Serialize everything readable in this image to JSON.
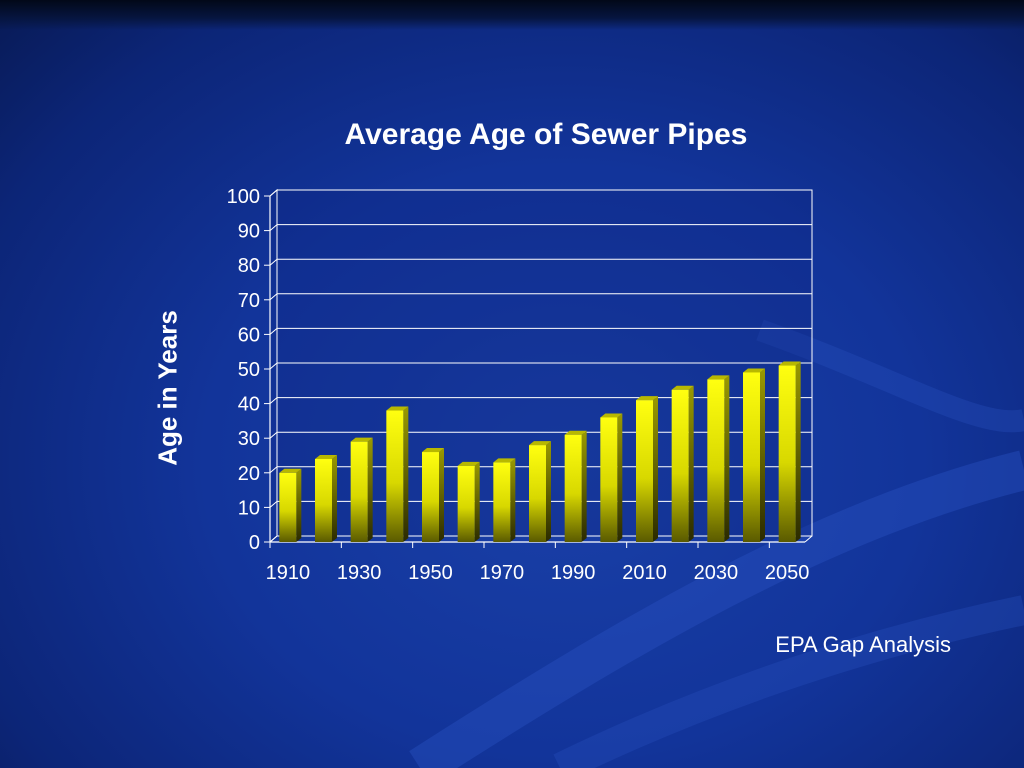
{
  "chart_data": {
    "type": "bar",
    "title": "Average Age of Sewer Pipes",
    "ylabel": "Age in Years",
    "xlabel": "",
    "ylim": [
      0,
      100
    ],
    "yticks": [
      0,
      10,
      20,
      30,
      40,
      50,
      60,
      70,
      80,
      90,
      100
    ],
    "xtick_labels": [
      "1910",
      "1930",
      "1950",
      "1970",
      "1990",
      "2010",
      "2030",
      "2050"
    ],
    "categories": [
      "1910",
      "1920",
      "1930",
      "1940",
      "1950",
      "1960",
      "1970",
      "1980",
      "1990",
      "2000",
      "2010",
      "2020",
      "2030",
      "2040",
      "2050"
    ],
    "values": [
      20,
      24,
      29,
      38,
      26,
      22,
      23,
      28,
      31,
      36,
      41,
      44,
      47,
      49,
      51
    ],
    "grid": true,
    "bar_color": "#ffff00"
  },
  "footer": {
    "source": "EPA Gap Analysis"
  },
  "colors": {
    "background": "#12349a",
    "text": "#ffffff",
    "bar": "#ffff00",
    "bar_dark": "#4a4a00"
  }
}
